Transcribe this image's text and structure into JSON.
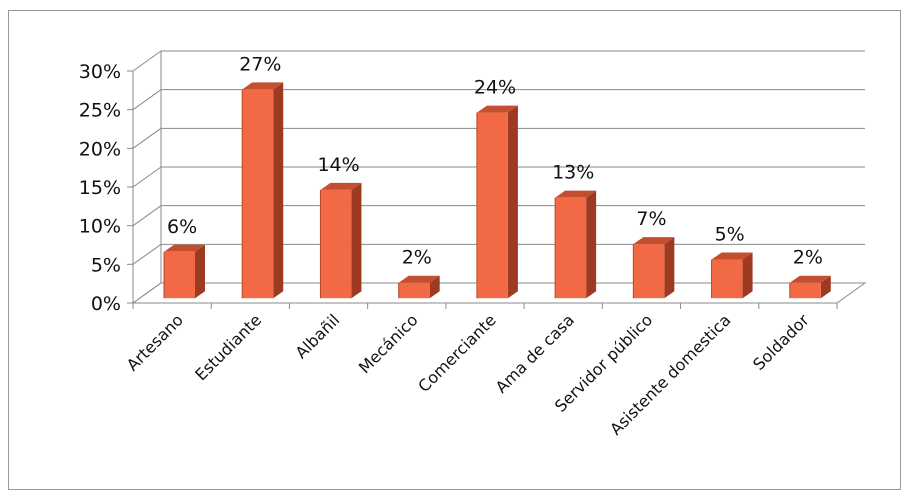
{
  "chart_data": {
    "type": "bar",
    "categories": [
      "Artesano",
      "Estudiante",
      "Albañil",
      "Mecánico",
      "Comerciante",
      "Ama de casa",
      "Servidor público",
      "Asistente domestica",
      "Soldador"
    ],
    "values": [
      6,
      27,
      14,
      2,
      24,
      13,
      7,
      5,
      2
    ],
    "value_labels": [
      "6%",
      "27%",
      "14%",
      "2%",
      "24%",
      "13%",
      "7%",
      "5%",
      "2%"
    ],
    "y_ticks": [
      "0%",
      "5%",
      "10%",
      "15%",
      "20%",
      "25%",
      "30%"
    ],
    "ylim": [
      0,
      30
    ],
    "grid": true,
    "style": "3d-column",
    "colors": {
      "bar_front": "#f26a45",
      "bar_side": "#9c3a22",
      "bar_top": "#c44e30",
      "grid": "#8a8a8a"
    }
  }
}
